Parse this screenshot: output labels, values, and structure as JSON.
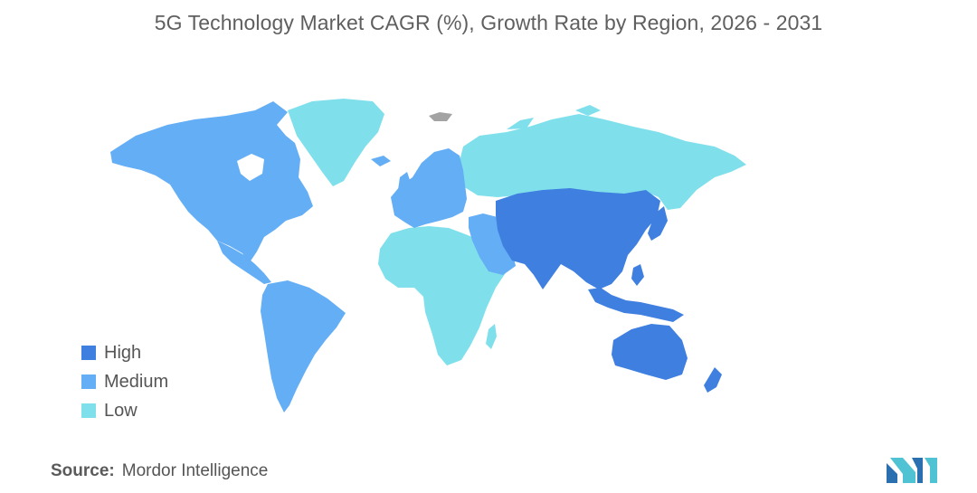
{
  "title": "5G Technology Market CAGR (%), Growth Rate by Region, 2026 - 2031",
  "legend": {
    "items": [
      {
        "label": "High",
        "color": "#3f7fdf"
      },
      {
        "label": "Medium",
        "color": "#63aef5"
      },
      {
        "label": "Low",
        "color": "#7fe0ec"
      }
    ]
  },
  "colors": {
    "no_data": "#a3a3a3"
  },
  "source": {
    "label": "Source:",
    "text": "Mordor Intelligence"
  },
  "logo": {
    "icon": "mordor-intelligence-logo-icon",
    "colors": [
      "#2a6fb0",
      "#4fc3d4"
    ]
  }
}
